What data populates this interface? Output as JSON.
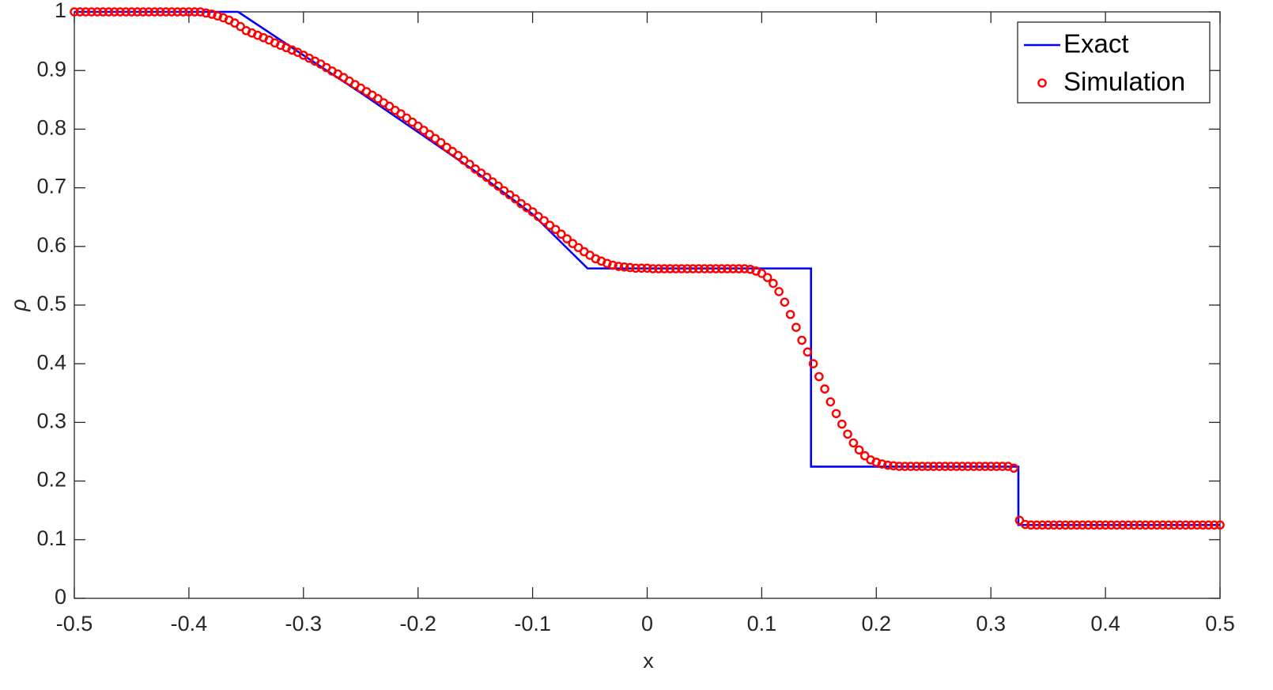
{
  "chart_data": {
    "type": "line_scatter",
    "xlabel": "x",
    "ylabel": "ρ",
    "xlim": [
      -0.5,
      0.5
    ],
    "ylim": [
      0,
      1
    ],
    "xticks": [
      -0.5,
      -0.4,
      -0.3,
      -0.2,
      -0.1,
      0,
      0.1,
      0.2,
      0.3,
      0.4,
      0.5
    ],
    "yticks": [
      0,
      0.1,
      0.2,
      0.3,
      0.4,
      0.5,
      0.6,
      0.7,
      0.8,
      0.9,
      1
    ],
    "legend": "upper right",
    "series": [
      {
        "name": "Exact",
        "color": "#0000ff",
        "style": "line",
        "x": [
          -0.5,
          -0.357,
          -0.3,
          -0.25,
          -0.2,
          -0.15,
          -0.1,
          -0.052,
          0.143,
          0.143,
          0.324,
          0.324,
          0.5
        ],
        "values": [
          1,
          1,
          0.926,
          0.862,
          0.795,
          0.728,
          0.655,
          0.5625,
          0.5625,
          0.2245,
          0.2245,
          0.125,
          0.125
        ]
      },
      {
        "name": "Simulation",
        "color": "#ff0000",
        "style": "marker",
        "x": [
          -0.5,
          -0.495,
          -0.49,
          -0.485,
          -0.48,
          -0.475,
          -0.47,
          -0.465,
          -0.46,
          -0.455,
          -0.45,
          -0.445,
          -0.44,
          -0.435,
          -0.43,
          -0.425,
          -0.42,
          -0.415,
          -0.41,
          -0.405,
          -0.4,
          -0.395,
          -0.39,
          -0.385,
          -0.38,
          -0.375,
          -0.37,
          -0.365,
          -0.36,
          -0.355,
          -0.35,
          -0.345,
          -0.34,
          -0.335,
          -0.33,
          -0.325,
          -0.32,
          -0.315,
          -0.31,
          -0.305,
          -0.3,
          -0.295,
          -0.29,
          -0.285,
          -0.28,
          -0.275,
          -0.27,
          -0.265,
          -0.26,
          -0.255,
          -0.25,
          -0.245,
          -0.24,
          -0.235,
          -0.23,
          -0.225,
          -0.22,
          -0.215,
          -0.21,
          -0.205,
          -0.2,
          -0.195,
          -0.19,
          -0.185,
          -0.18,
          -0.175,
          -0.17,
          -0.165,
          -0.16,
          -0.155,
          -0.15,
          -0.145,
          -0.14,
          -0.135,
          -0.13,
          -0.125,
          -0.12,
          -0.115,
          -0.11,
          -0.105,
          -0.1,
          -0.095,
          -0.09,
          -0.085,
          -0.08,
          -0.075,
          -0.07,
          -0.065,
          -0.06,
          -0.055,
          -0.05,
          -0.045,
          -0.04,
          -0.035,
          -0.03,
          -0.025,
          -0.02,
          -0.015,
          -0.01,
          -0.005,
          0,
          0.005,
          0.01,
          0.015,
          0.02,
          0.025,
          0.03,
          0.035,
          0.04,
          0.045,
          0.05,
          0.055,
          0.06,
          0.065,
          0.07,
          0.075,
          0.08,
          0.085,
          0.09,
          0.095,
          0.1,
          0.105,
          0.11,
          0.115,
          0.12,
          0.125,
          0.13,
          0.135,
          0.14,
          0.145,
          0.15,
          0.155,
          0.16,
          0.165,
          0.17,
          0.175,
          0.18,
          0.185,
          0.19,
          0.195,
          0.2,
          0.205,
          0.21,
          0.215,
          0.22,
          0.225,
          0.23,
          0.235,
          0.24,
          0.245,
          0.25,
          0.255,
          0.26,
          0.265,
          0.27,
          0.275,
          0.28,
          0.285,
          0.29,
          0.295,
          0.3,
          0.305,
          0.31,
          0.315,
          0.32,
          0.325,
          0.33,
          0.335,
          0.34,
          0.345,
          0.35,
          0.355,
          0.36,
          0.365,
          0.37,
          0.375,
          0.38,
          0.385,
          0.39,
          0.395,
          0.4,
          0.405,
          0.41,
          0.415,
          0.42,
          0.425,
          0.43,
          0.435,
          0.44,
          0.445,
          0.45,
          0.455,
          0.46,
          0.465,
          0.47,
          0.475,
          0.48,
          0.485,
          0.49,
          0.495,
          0.5
        ],
        "values": [
          1,
          1,
          1,
          1,
          1,
          1,
          1,
          1,
          1,
          1,
          1,
          1,
          1,
          1,
          1,
          1,
          1,
          1,
          1,
          1,
          1,
          1,
          1,
          0.998,
          0.996,
          0.993,
          0.99,
          0.986,
          0.981,
          0.975,
          0.968,
          0.964,
          0.96,
          0.956,
          0.952,
          0.947,
          0.943,
          0.939,
          0.935,
          0.931,
          0.926,
          0.921,
          0.916,
          0.911,
          0.905,
          0.899,
          0.894,
          0.888,
          0.882,
          0.876,
          0.87,
          0.864,
          0.858,
          0.852,
          0.845,
          0.839,
          0.832,
          0.826,
          0.819,
          0.812,
          0.805,
          0.798,
          0.791,
          0.784,
          0.777,
          0.769,
          0.762,
          0.755,
          0.747,
          0.74,
          0.732,
          0.725,
          0.718,
          0.71,
          0.703,
          0.695,
          0.688,
          0.681,
          0.673,
          0.666,
          0.659,
          0.651,
          0.644,
          0.636,
          0.629,
          0.621,
          0.613,
          0.605,
          0.598,
          0.591,
          0.585,
          0.579,
          0.575,
          0.571,
          0.568,
          0.566,
          0.565,
          0.564,
          0.563,
          0.563,
          0.563,
          0.562,
          0.562,
          0.562,
          0.562,
          0.562,
          0.562,
          0.562,
          0.562,
          0.562,
          0.562,
          0.562,
          0.562,
          0.562,
          0.562,
          0.562,
          0.562,
          0.562,
          0.561,
          0.558,
          0.554,
          0.547,
          0.537,
          0.523,
          0.505,
          0.484,
          0.462,
          0.44,
          0.42,
          0.4,
          0.378,
          0.357,
          0.335,
          0.315,
          0.297,
          0.28,
          0.265,
          0.253,
          0.243,
          0.236,
          0.232,
          0.229,
          0.227,
          0.226,
          0.225,
          0.225,
          0.225,
          0.225,
          0.225,
          0.225,
          0.225,
          0.225,
          0.225,
          0.225,
          0.225,
          0.225,
          0.225,
          0.225,
          0.225,
          0.225,
          0.225,
          0.225,
          0.225,
          0.225,
          0.222,
          0.133,
          0.126,
          0.125,
          0.125,
          0.125,
          0.125,
          0.125,
          0.125,
          0.125,
          0.125,
          0.125,
          0.125,
          0.125,
          0.125,
          0.125,
          0.125,
          0.125,
          0.125,
          0.125,
          0.125,
          0.125,
          0.125,
          0.125,
          0.125,
          0.125,
          0.125,
          0.125,
          0.125,
          0.125,
          0.125,
          0.125,
          0.125,
          0.125,
          0.125,
          0.125,
          0.125
        ]
      }
    ]
  }
}
